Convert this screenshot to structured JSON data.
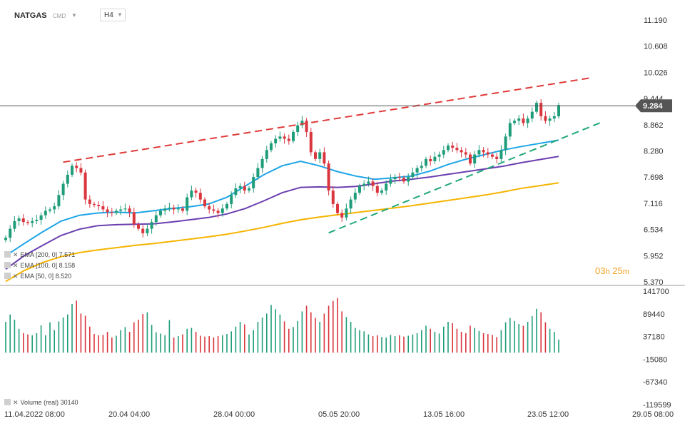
{
  "toolbar": {
    "symbol": "NATGAS",
    "instrument_type": "CMD",
    "timeframe": "H4"
  },
  "last_price_label": "9.284",
  "candle_timer": {
    "hours": "03",
    "hours_unit": "h",
    "minutes": "25",
    "minutes_unit": "m"
  },
  "indicators": {
    "ema200": {
      "label": "EMA  [200, 0]",
      "value": "7.571",
      "color": "#f5b400"
    },
    "ema100": {
      "label": "EMA  [100, 0]",
      "value": "8.158",
      "color": "#6b3fb0"
    },
    "ema50": {
      "label": "EMA  [50, 0]",
      "value": "8.520",
      "color": "#1ea5e6"
    },
    "volume": {
      "label": "Volume  (real)",
      "value": "30140"
    }
  },
  "colors": {
    "bull": "#1f9d7a",
    "bear": "#d9363e",
    "resistance_line": "#e03a3a",
    "support_line": "#20a87a",
    "price_line": "#555555"
  },
  "chart_data": {
    "type": "candlestick",
    "instrument": "NATGAS",
    "timeframe": "H4",
    "price_axis_ticks": [
      "11.190",
      "10.608",
      "10.026",
      "9.444",
      "8.862",
      "8.280",
      "7.698",
      "7.116",
      "6.534",
      "5.952",
      "5.370"
    ],
    "price_range": [
      5.37,
      11.19
    ],
    "volume_axis_ticks": [
      "141700",
      "89440",
      "37180",
      "-15080",
      "-67340",
      "-119599"
    ],
    "volume_range": [
      -119599,
      141700
    ],
    "time_axis_labels": [
      "11.04.2022  08:00",
      "20.04  04:00",
      "28.04  00:00",
      "05.05  20:00",
      "13.05  16:00",
      "23.05  12:00",
      "29.05  08:00"
    ],
    "last_price": 9.284,
    "closes": [
      6.35,
      6.55,
      6.72,
      6.78,
      6.7,
      6.68,
      6.72,
      6.75,
      6.85,
      6.95,
      6.98,
      7.05,
      7.3,
      7.55,
      7.75,
      7.95,
      7.9,
      7.8,
      7.2,
      7.1,
      7.08,
      7.05,
      6.98,
      6.92,
      6.9,
      6.95,
      6.98,
      7.0,
      6.92,
      6.65,
      6.55,
      6.45,
      6.55,
      6.7,
      6.85,
      6.95,
      7.0,
      7.02,
      6.98,
      7.0,
      6.95,
      7.25,
      7.4,
      7.35,
      7.2,
      7.05,
      6.98,
      6.95,
      6.9,
      7.0,
      7.1,
      7.3,
      7.45,
      7.5,
      7.4,
      7.45,
      7.7,
      7.9,
      8.1,
      8.3,
      8.45,
      8.55,
      8.6,
      8.55,
      8.5,
      8.7,
      8.85,
      8.95,
      8.7,
      8.25,
      8.1,
      8.25,
      8.0,
      7.4,
      7.1,
      6.9,
      6.8,
      7.0,
      7.2,
      7.35,
      7.5,
      7.55,
      7.6,
      7.5,
      7.35,
      7.4,
      7.55,
      7.65,
      7.7,
      7.68,
      7.6,
      7.7,
      7.8,
      7.9,
      7.95,
      8.1,
      8.05,
      8.15,
      8.2,
      8.3,
      8.4,
      8.35,
      8.3,
      8.25,
      8.2,
      8.0,
      8.2,
      8.3,
      8.25,
      8.2,
      8.15,
      8.1,
      8.3,
      8.6,
      8.9,
      8.95,
      9.0,
      8.9,
      9.0,
      9.15,
      9.35,
      9.05,
      8.95,
      9.0,
      9.05,
      9.3
    ],
    "volumes": [
      71000,
      88000,
      76000,
      55000,
      45000,
      42000,
      40000,
      45000,
      63000,
      40000,
      70000,
      52000,
      72000,
      81000,
      88000,
      112000,
      120000,
      90000,
      85000,
      60000,
      43000,
      40000,
      41000,
      48000,
      35000,
      39000,
      52000,
      59000,
      48000,
      70000,
      76000,
      89000,
      93000,
      64000,
      47000,
      44000,
      40000,
      75000,
      35000,
      38000,
      42000,
      55000,
      57000,
      48000,
      39000,
      37000,
      38000,
      35000,
      38000,
      40000,
      43000,
      49000,
      60000,
      71000,
      65000,
      42000,
      52000,
      71000,
      81000,
      90000,
      110000,
      100000,
      88000,
      72000,
      55000,
      59000,
      73000,
      95000,
      108000,
      93000,
      80000,
      71000,
      90000,
      108000,
      119000,
      126000,
      95000,
      82000,
      71000,
      57000,
      52000,
      49000,
      42000,
      38000,
      40000,
      36000,
      35000,
      41000,
      38000,
      40000,
      37000,
      39000,
      42000,
      45000,
      52000,
      62000,
      55000,
      48000,
      44000,
      60000,
      71000,
      68000,
      55000,
      48000,
      45000,
      62000,
      57000,
      50000,
      45000,
      43000,
      41000,
      36000,
      52000,
      70000,
      80000,
      73000,
      66000,
      62000,
      71000,
      84000,
      101000,
      93000,
      70000,
      55000,
      48000,
      30140
    ],
    "ema_50_values": [
      5.95,
      6.22,
      6.48,
      6.72,
      6.85,
      6.9,
      6.92,
      6.9,
      6.95,
      7.0,
      7.04,
      7.1,
      7.25,
      7.5,
      7.75,
      7.95,
      8.05,
      7.95,
      7.82,
      7.72,
      7.65,
      7.68,
      7.72,
      7.83,
      7.98,
      8.1,
      8.2,
      8.3,
      8.38,
      8.45,
      8.52
    ],
    "ema_100_values": [
      5.65,
      5.95,
      6.18,
      6.4,
      6.54,
      6.62,
      6.64,
      6.65,
      6.66,
      6.7,
      6.75,
      6.8,
      6.88,
      7.0,
      7.17,
      7.35,
      7.47,
      7.48,
      7.47,
      7.49,
      7.55,
      7.61,
      7.65,
      7.7,
      7.76,
      7.82,
      7.88,
      7.94,
      8.02,
      8.09,
      8.158
    ],
    "ema_200_values": [
      5.38,
      5.62,
      5.8,
      5.93,
      6.02,
      6.08,
      6.13,
      6.18,
      6.22,
      6.27,
      6.32,
      6.37,
      6.43,
      6.5,
      6.58,
      6.67,
      6.75,
      6.81,
      6.86,
      6.91,
      6.96,
      7.01,
      7.06,
      7.12,
      7.18,
      7.24,
      7.3,
      7.37,
      7.45,
      7.51,
      7.571
    ],
    "resistance_trendline": [
      {
        "x_index": 13,
        "y": 8.03
      },
      {
        "x_index": 132,
        "y": 9.9
      }
    ],
    "support_trendline": [
      {
        "x_index": 73,
        "y": 6.46
      },
      {
        "x_index": 135,
        "y": 8.93
      }
    ]
  }
}
